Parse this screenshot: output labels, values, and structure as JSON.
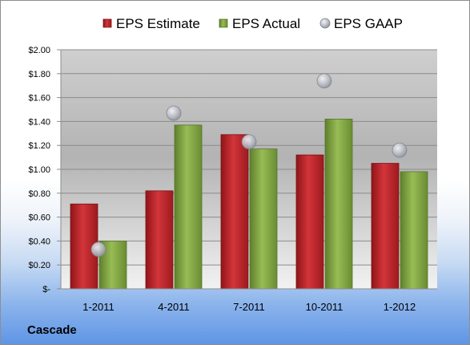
{
  "company": "Cascade",
  "chart_data": {
    "type": "bar",
    "categories": [
      "1-2011",
      "4-2011",
      "7-2011",
      "10-2011",
      "1-2012"
    ],
    "series": [
      {
        "name": "EPS Estimate",
        "kind": "bar",
        "color": "#c0262b",
        "values": [
          0.71,
          0.82,
          1.29,
          1.12,
          1.05
        ]
      },
      {
        "name": "EPS Actual",
        "kind": "bar",
        "color": "#8aae48",
        "values": [
          0.4,
          1.37,
          1.17,
          1.42,
          0.98
        ]
      },
      {
        "name": "EPS GAAP",
        "kind": "marker",
        "color": "#b9bcc4",
        "values": [
          0.33,
          1.47,
          1.23,
          1.74,
          1.16
        ]
      }
    ],
    "ylim": [
      0,
      2.0
    ],
    "yticks": [
      0,
      0.2,
      0.4,
      0.6,
      0.8,
      1.0,
      1.2,
      1.4,
      1.6,
      1.8,
      2.0
    ],
    "ytick_labels": [
      "$-",
      "$0.20",
      "$0.40",
      "$0.60",
      "$0.80",
      "$1.00",
      "$1.20",
      "$1.40",
      "$1.60",
      "$1.80",
      "$2.00"
    ],
    "legend_position": "top",
    "grid": true
  }
}
